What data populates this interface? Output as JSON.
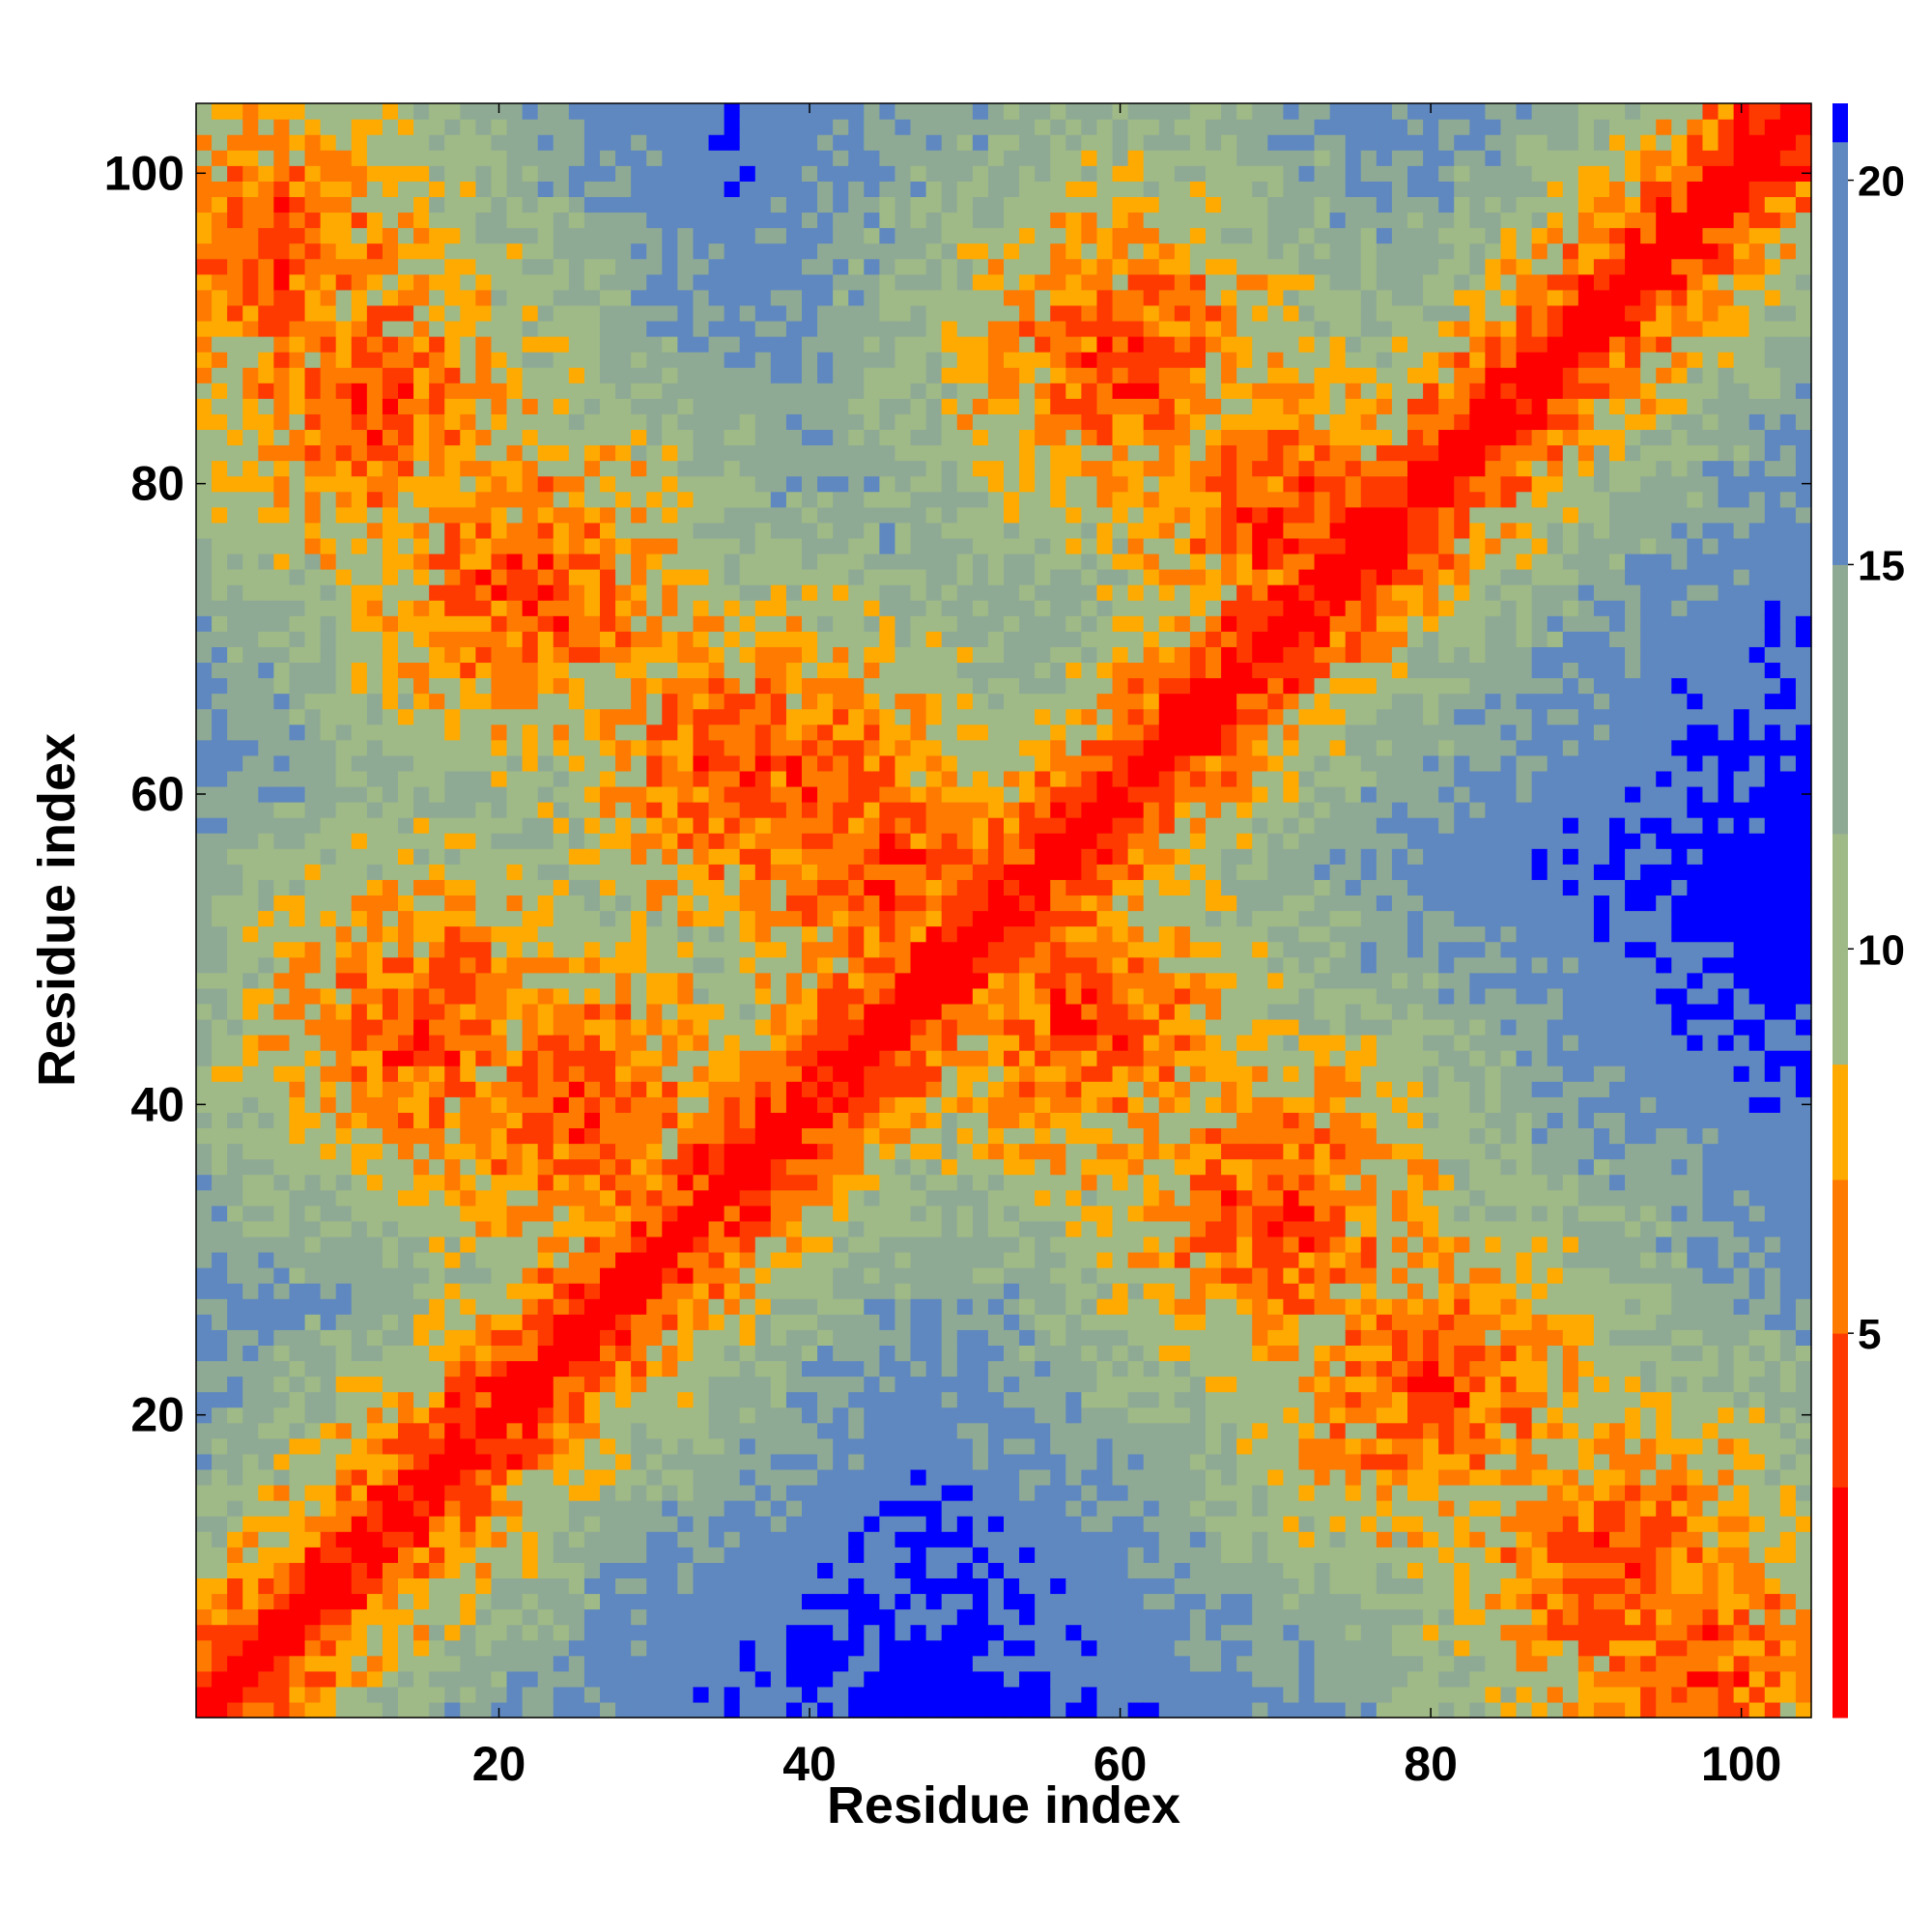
{
  "chart_data": {
    "type": "heatmap",
    "title": "",
    "xlabel": "Residue index",
    "ylabel": "Residue index",
    "n_residues": 104,
    "xlim": [
      1,
      104
    ],
    "ylim": [
      1,
      104
    ],
    "x_ticks": [
      20,
      40,
      60,
      80,
      100
    ],
    "y_ticks": [
      20,
      40,
      60,
      80,
      100
    ],
    "colorbar": {
      "ticks": [
        5,
        10,
        15,
        20
      ],
      "range": [
        0,
        21
      ],
      "bands": [
        {
          "max": 3,
          "color": "#ff0000"
        },
        {
          "max": 5,
          "color": "#ff3a00"
        },
        {
          "max": 7,
          "color": "#ff7a00"
        },
        {
          "max": 8.5,
          "color": "#ffaa00"
        },
        {
          "max": 11.5,
          "color": "#9fba86"
        },
        {
          "max": 15,
          "color": "#8faa94"
        },
        {
          "max": 20.5,
          "color": "#5f88c0"
        },
        {
          "max": 21,
          "color": "#0000ff"
        }
      ]
    },
    "matrix_description": "symmetric residue-residue distance map with a red/orange main diagonal and an anti-diagonal contact band; far pairs are blue",
    "contact_centers": [
      [
        5,
        95
      ],
      [
        12,
        85
      ],
      [
        22,
        73
      ],
      [
        35,
        62
      ],
      [
        45,
        55
      ],
      [
        52,
        52
      ],
      [
        58,
        45
      ],
      [
        70,
        33
      ],
      [
        80,
        22
      ],
      [
        92,
        10
      ],
      [
        97,
        3
      ],
      [
        60,
        88
      ],
      [
        70,
        78
      ],
      [
        40,
        60
      ],
      [
        25,
        40
      ],
      [
        15,
        45
      ]
    ],
    "grid": false,
    "legend": "colorbar-right"
  }
}
